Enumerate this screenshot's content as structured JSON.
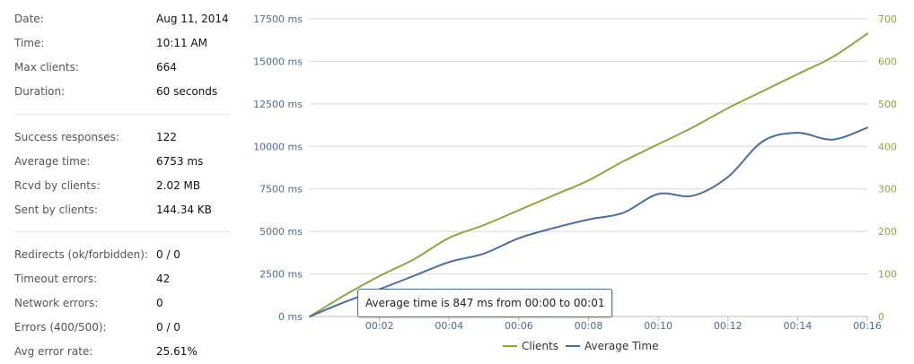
{
  "stats": {
    "date": {
      "label": "Date:",
      "value": "Aug 11, 2014"
    },
    "time": {
      "label": "Time:",
      "value": "10:11 AM"
    },
    "max_clients": {
      "label": "Max clients:",
      "value": "664"
    },
    "duration": {
      "label": "Duration:",
      "value": "60 seconds"
    },
    "success": {
      "label": "Success responses:",
      "value": "122"
    },
    "avg_time": {
      "label": "Average time:",
      "value": "6753 ms"
    },
    "rcvd": {
      "label": "Rcvd by clients:",
      "value": "2.02 MB"
    },
    "sent": {
      "label": "Sent by clients:",
      "value": "144.34 KB"
    },
    "redirects": {
      "label": "Redirects (ok/forbidden):",
      "value": "0 / 0"
    },
    "timeouts": {
      "label": "Timeout errors:",
      "value": "42"
    },
    "network": {
      "label": "Network errors:",
      "value": "0"
    },
    "errors": {
      "label": "Errors (400/500):",
      "value": "0 / 0"
    },
    "error_rate": {
      "label": "Avg error rate:",
      "value": "25.61%"
    }
  },
  "tooltip": {
    "text": "Average time is 847 ms from 00:00 to 00:01"
  },
  "chart_data": {
    "type": "line",
    "title": "",
    "x": [
      "00:00",
      "00:01",
      "00:02",
      "00:03",
      "00:04",
      "00:05",
      "00:06",
      "00:07",
      "00:08",
      "00:09",
      "00:10",
      "00:11",
      "00:12",
      "00:13",
      "00:14",
      "00:15",
      "00:16"
    ],
    "x_tick_labels": [
      "00:02",
      "00:04",
      "00:06",
      "00:08",
      "00:10",
      "00:12",
      "00:14",
      "00:16"
    ],
    "y_left": {
      "ylim": [
        0,
        17500
      ],
      "ticks": [
        "0 ms",
        "2500 ms",
        "5000 ms",
        "7500 ms",
        "10000 ms",
        "12500 ms",
        "15000 ms",
        "17500 ms"
      ]
    },
    "y_right": {
      "ylim": [
        0,
        700
      ],
      "ticks": [
        "0",
        "100",
        "200",
        "300",
        "400",
        "500",
        "600",
        "700"
      ]
    },
    "grid": true,
    "legend": "bottom",
    "series": [
      {
        "name": "Clients",
        "axis": "right",
        "color": "#8aa83e",
        "values": [
          0,
          50,
          95,
          135,
          185,
          215,
          250,
          285,
          320,
          365,
          405,
          445,
          490,
          530,
          570,
          610,
          665
        ]
      },
      {
        "name": "Average Time",
        "axis": "left",
        "color": "#4a6e9a",
        "values": [
          0,
          847,
          1600,
          2400,
          3200,
          3700,
          4600,
          5200,
          5700,
          6100,
          7200,
          7100,
          8200,
          10300,
          10800,
          10400,
          11100
        ]
      }
    ]
  }
}
